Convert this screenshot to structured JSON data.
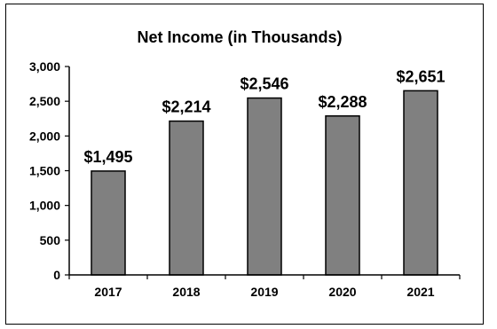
{
  "chart_data": {
    "type": "bar",
    "title": "Net Income (in Thousands)",
    "xlabel": "",
    "ylabel": "",
    "categories": [
      "2017",
      "2018",
      "2019",
      "2020",
      "2021"
    ],
    "values": [
      1495,
      2214,
      2546,
      2288,
      2651
    ],
    "data_labels": [
      "$1,495",
      "$2,214",
      "$2,546",
      "$2,288",
      "$2,651"
    ],
    "ylim": [
      0,
      3000
    ],
    "yticks": [
      0,
      500,
      1000,
      1500,
      2000,
      2500,
      3000
    ],
    "ytick_labels": [
      "0",
      "500",
      "1,000",
      "1,500",
      "2,000",
      "2,500",
      "3,000"
    ],
    "grid": false,
    "legend": "none",
    "bar_color": "#808080",
    "bar_edge_color": "#000000"
  }
}
